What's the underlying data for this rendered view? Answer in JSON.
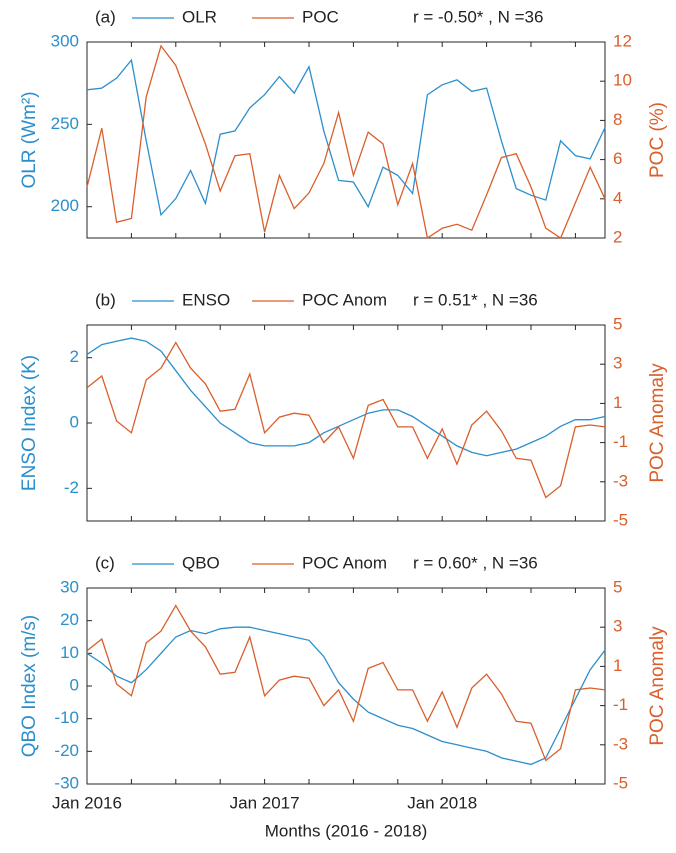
{
  "chart_data": [
    {
      "type": "line",
      "panel_label": "(a)",
      "annotation": "r = -0.50* , N =36",
      "ylabel": "OLR (Wm²)",
      "y2label": "POC (%)",
      "categories": [
        null,
        null,
        null,
        null,
        null,
        null,
        null,
        null,
        null,
        null,
        null,
        null,
        null,
        null,
        null,
        null,
        null,
        null,
        null,
        null,
        null,
        null,
        null,
        null,
        null,
        null,
        null,
        null,
        null,
        null,
        null,
        null,
        null,
        null,
        null,
        null
      ],
      "series": [
        {
          "name": "OLR",
          "color": "#2b8fcc",
          "values": [
            271,
            272,
            278,
            289,
            240,
            195,
            205,
            222,
            202,
            244,
            246,
            260,
            268,
            279,
            269,
            285,
            246,
            216,
            215,
            200,
            224,
            219,
            208,
            268,
            274,
            277,
            270,
            272,
            240,
            211,
            207,
            204,
            240,
            231,
            229,
            248
          ]
        },
        {
          "name": "POC",
          "color": "#d95f2b",
          "axis": "y2",
          "values": [
            4.6,
            7.6,
            2.8,
            3,
            9.2,
            11.8,
            10.8,
            8.8,
            6.8,
            4.4,
            6.2,
            6.3,
            2.3,
            5.2,
            3.5,
            4.3,
            5.8,
            8.4,
            5.2,
            7.4,
            6.8,
            3.7,
            5.8,
            2,
            2.5,
            2.7,
            2.4,
            4.2,
            6.1,
            6.3,
            4.6,
            2.5,
            2,
            3.8,
            5.6,
            4
          ]
        }
      ],
      "ylim": [
        181,
        300
      ],
      "yticks": [
        200,
        250,
        300
      ],
      "y2lim": [
        2,
        12
      ],
      "y2ticks": [
        2,
        4,
        6,
        8,
        10,
        12
      ]
    },
    {
      "type": "line",
      "panel_label": "(b)",
      "annotation": "r = 0.51* , N =36",
      "ylabel": "ENSO Index (K)",
      "y2label": "POC Anomaly",
      "categories": [
        null,
        null,
        null,
        null,
        null,
        null,
        null,
        null,
        null,
        null,
        null,
        null,
        null,
        null,
        null,
        null,
        null,
        null,
        null,
        null,
        null,
        null,
        null,
        null,
        null,
        null,
        null,
        null,
        null,
        null,
        null,
        null,
        null,
        null,
        null,
        null
      ],
      "series": [
        {
          "name": "ENSO",
          "color": "#2b8fcc",
          "values": [
            2.1,
            2.4,
            2.5,
            2.6,
            2.5,
            2.2,
            1.6,
            1.0,
            0.5,
            0.0,
            -0.3,
            -0.6,
            -0.7,
            -0.7,
            -0.7,
            -0.6,
            -0.3,
            -0.1,
            0.1,
            0.3,
            0.4,
            0.4,
            0.2,
            -0.1,
            -0.4,
            -0.7,
            -0.9,
            -1.0,
            -0.9,
            -0.8,
            -0.6,
            -0.4,
            -0.1,
            0.1,
            0.1,
            0.2
          ]
        },
        {
          "name": "POC Anom",
          "color": "#d95f2b",
          "axis": "y2",
          "values": [
            1.8,
            2.4,
            0.1,
            -0.5,
            2.2,
            2.8,
            4.1,
            2.8,
            2.0,
            0.6,
            0.7,
            2.5,
            -0.5,
            0.3,
            0.5,
            0.4,
            -1.0,
            -0.2,
            -1.8,
            0.9,
            1.2,
            -0.2,
            -0.2,
            -1.8,
            -0.3,
            -2.1,
            -0.1,
            0.6,
            -0.4,
            -1.8,
            -1.9,
            -3.8,
            -3.2,
            -0.2,
            -0.1,
            -0.2
          ]
        }
      ],
      "ylim": [
        -3,
        3
      ],
      "yticks": [
        -2,
        0,
        2
      ],
      "y2lim": [
        -5,
        5
      ],
      "y2ticks": [
        -5,
        -3,
        -1,
        1,
        3,
        5
      ]
    },
    {
      "type": "line",
      "panel_label": "(c)",
      "annotation": "r = 0.60* , N =36",
      "ylabel": "QBO Index (m/s)",
      "y2label": "POC Anomaly",
      "xlabel": "Months (2016 - 2018)",
      "categories": [
        "Jan 2016",
        null,
        null,
        null,
        null,
        null,
        null,
        null,
        null,
        null,
        null,
        null,
        "Jan 2017",
        null,
        null,
        null,
        null,
        null,
        null,
        null,
        null,
        null,
        null,
        null,
        "Jan 2018",
        null,
        null,
        null,
        null,
        null,
        null,
        null,
        null,
        null,
        null,
        null
      ],
      "series": [
        {
          "name": "QBO",
          "color": "#2b8fcc",
          "values": [
            10,
            7,
            3,
            1,
            5,
            10,
            15,
            17,
            16,
            17.5,
            18,
            18,
            17,
            16,
            15,
            14,
            9,
            1,
            -4,
            -8,
            -10,
            -12,
            -13,
            -15,
            -17,
            -18,
            -19,
            -20,
            -22,
            -23,
            -24,
            -22,
            -13,
            -4,
            5,
            11
          ]
        },
        {
          "name": "POC Anom",
          "color": "#d95f2b",
          "axis": "y2",
          "values": [
            1.8,
            2.4,
            0.1,
            -0.5,
            2.2,
            2.8,
            4.1,
            2.8,
            2.0,
            0.6,
            0.7,
            2.5,
            -0.5,
            0.3,
            0.5,
            0.4,
            -1.0,
            -0.2,
            -1.8,
            0.9,
            1.2,
            -0.2,
            -0.2,
            -1.8,
            -0.3,
            -2.1,
            -0.1,
            0.6,
            -0.4,
            -1.8,
            -1.9,
            -3.8,
            -3.2,
            -0.2,
            -0.1,
            -0.2
          ]
        }
      ],
      "ylim": [
        -30,
        30
      ],
      "yticks": [
        -30,
        -20,
        -10,
        0,
        10,
        20,
        30
      ],
      "y2lim": [
        -5,
        5
      ],
      "y2ticks": [
        -5,
        -3,
        -1,
        1,
        3,
        5
      ]
    }
  ]
}
